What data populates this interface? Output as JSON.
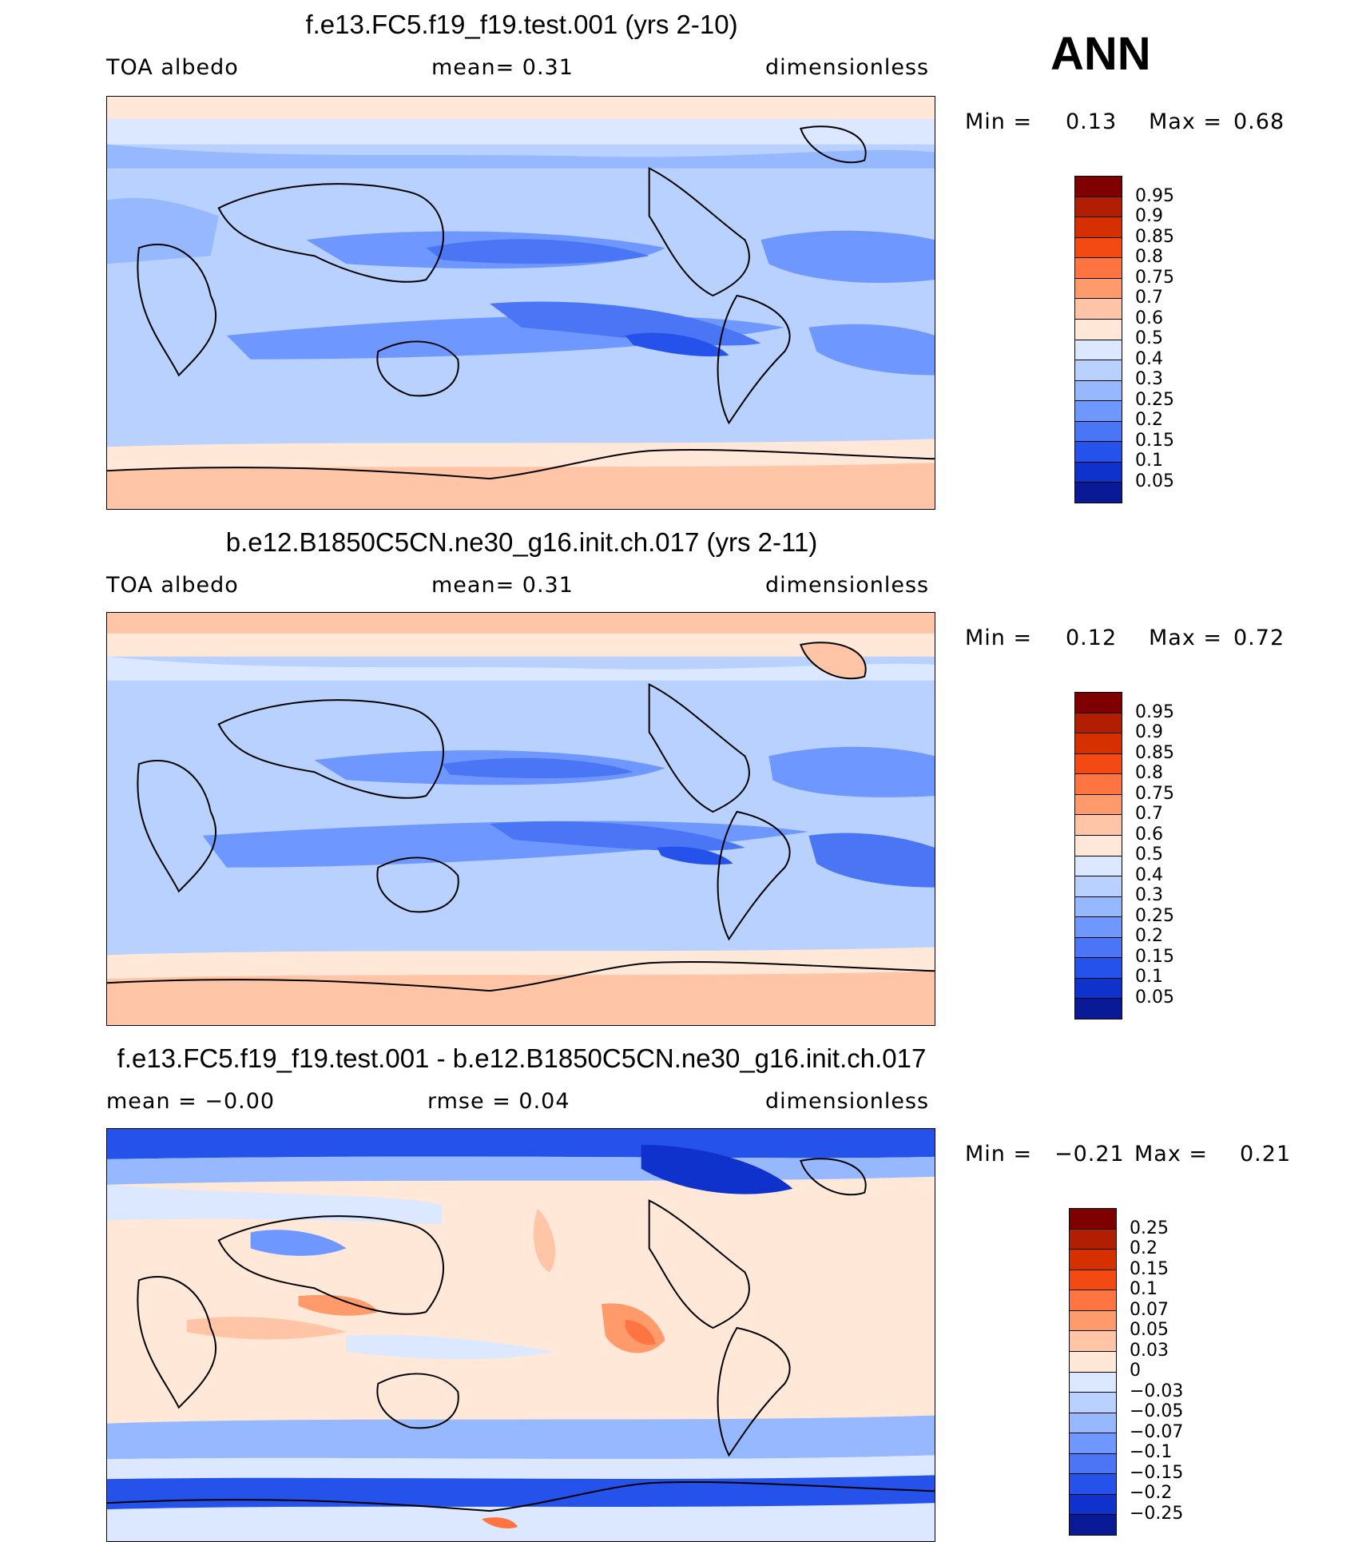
{
  "season": "ANN",
  "panels": [
    {
      "title": "f.e13.FC5.f19_f19.test.001 (yrs 2-10)",
      "left_label": "TOA albedo",
      "center_label": "mean=    0.31",
      "right_label": "dimensionless",
      "min_label": "Min =",
      "min_value": "0.13",
      "max_label": "Max =",
      "max_value": "0.68"
    },
    {
      "title": "b.e12.B1850C5CN.ne30_g16.init.ch.017 (yrs 2-11)",
      "left_label": "TOA albedo",
      "center_label": "mean=    0.31",
      "right_label": "dimensionless",
      "min_label": "Min =",
      "min_value": "0.12",
      "max_label": "Max =",
      "max_value": "0.72"
    },
    {
      "title": "f.e13.FC5.f19_f19.test.001 - b.e12.B1850C5CN.ne30_g16.init.ch.017",
      "left_label": "mean =   −0.00",
      "center_label": "rmse =    0.04",
      "right_label": "dimensionless",
      "min_label": "Min =",
      "min_value": "−0.21",
      "max_label": "Max =",
      "max_value": "0.21"
    }
  ],
  "colorbars": {
    "albedo_levels": [
      "0.95",
      "0.9",
      "0.85",
      "0.8",
      "0.75",
      "0.7",
      "0.6",
      "0.5",
      "0.4",
      "0.3",
      "0.25",
      "0.2",
      "0.15",
      "0.1",
      "0.05"
    ],
    "albedo_colors": [
      "#7f0000",
      "#b21e02",
      "#d73000",
      "#f24a12",
      "#ff7440",
      "#ff9b6b",
      "#ffc5a6",
      "#ffe8d8",
      "#dbe8ff",
      "#b8d1ff",
      "#95b8ff",
      "#6e98ff",
      "#4a75f5",
      "#2552ea",
      "#0f31cc",
      "#0a1a96"
    ],
    "diff_levels": [
      "0.25",
      "0.2",
      "0.15",
      "0.1",
      "0.07",
      "0.05",
      "0.03",
      "0",
      "−0.03",
      "−0.05",
      "−0.07",
      "−0.1",
      "−0.15",
      "−0.2",
      "−0.25"
    ],
    "diff_colors": [
      "#7f0000",
      "#b21e02",
      "#d73000",
      "#f24a12",
      "#ff7440",
      "#ff9b6b",
      "#ffc5a6",
      "#ffe8d8",
      "#dbe8ff",
      "#b8d1ff",
      "#95b8ff",
      "#6e98ff",
      "#4a75f5",
      "#2552ea",
      "#0f31cc",
      "#0a1a96"
    ]
  }
}
